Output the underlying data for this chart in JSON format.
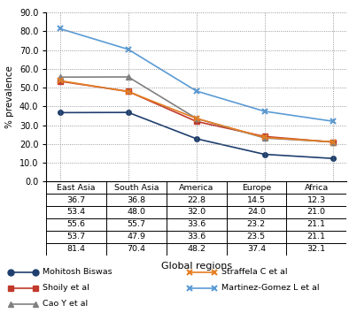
{
  "regions": [
    "East Asia",
    "South Asia",
    "America",
    "Europe",
    "Africa"
  ],
  "series": [
    {
      "label": "Mohitosh Biswas",
      "values": [
        36.7,
        36.8,
        22.8,
        14.5,
        12.3
      ],
      "color": "#1f3f6e",
      "marker": "o",
      "markersize": 4,
      "markeredgewidth": 1.0
    },
    {
      "label": "Shoily et al",
      "values": [
        53.4,
        48.0,
        32.0,
        24.0,
        21.0
      ],
      "color": "#c0392b",
      "marker": "s",
      "markersize": 4,
      "markeredgewidth": 1.0
    },
    {
      "label": "Cao Y et al",
      "values": [
        55.6,
        55.7,
        33.6,
        23.2,
        21.1
      ],
      "color": "#808080",
      "marker": "^",
      "markersize": 4,
      "markeredgewidth": 1.0
    },
    {
      "label": "Straffela C et al",
      "values": [
        53.7,
        47.9,
        33.6,
        23.5,
        21.1
      ],
      "color": "#e67e22",
      "marker": "x",
      "markersize": 5,
      "markeredgewidth": 1.5
    },
    {
      "label": "Martinez-Gomez L et al",
      "values": [
        81.4,
        70.4,
        48.2,
        37.4,
        32.1
      ],
      "color": "#5b9bd5",
      "marker": "x",
      "markersize": 5,
      "markeredgewidth": 1.5
    }
  ],
  "ylim": [
    0.0,
    90.0
  ],
  "yticks": [
    0.0,
    10.0,
    20.0,
    30.0,
    40.0,
    50.0,
    60.0,
    70.0,
    80.0,
    90.0
  ],
  "ylabel": "% prevalence",
  "xlabel": "Global regions",
  "table_header": [
    "East Asia",
    "South Asia",
    "America",
    "Europe",
    "Africa"
  ],
  "table_rows": [
    [
      "36.7",
      "36.8",
      "22.8",
      "14.5",
      "12.3"
    ],
    [
      "53.4",
      "48.0",
      "32.0",
      "24.0",
      "21.0"
    ],
    [
      "55.6",
      "55.7",
      "33.6",
      "23.2",
      "21.1"
    ],
    [
      "53.7",
      "47.9",
      "33.6",
      "23.5",
      "21.1"
    ],
    [
      "81.4",
      "70.4",
      "48.2",
      "37.4",
      "32.1"
    ]
  ],
  "legend_items": [
    {
      "label": "Mohitosh Biswas",
      "color": "#1f3f6e",
      "marker": "o"
    },
    {
      "label": "Shoily et al",
      "color": "#c0392b",
      "marker": "s"
    },
    {
      "label": "Cao Y et al",
      "color": "#808080",
      "marker": "^"
    },
    {
      "label": "Straffela C et al",
      "color": "#e67e22",
      "marker": "x"
    },
    {
      "label": "Martinez-Gomez L et al",
      "color": "#5b9bd5",
      "marker": "x"
    }
  ]
}
